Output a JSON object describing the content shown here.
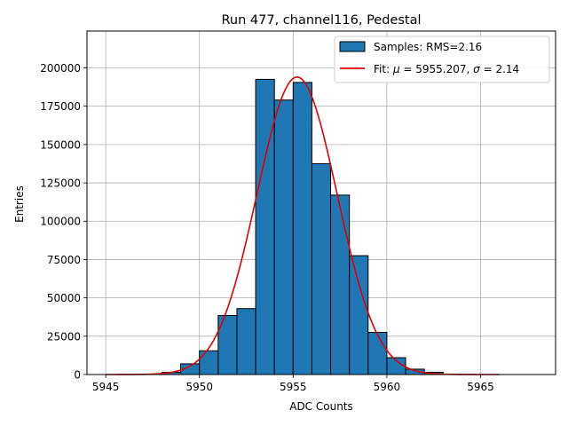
{
  "chart_data": {
    "type": "bar",
    "title": "Run 477, channel116, Pedestal",
    "xlabel": "ADC Counts",
    "ylabel": "Entries",
    "xlim": [
      5944,
      5969
    ],
    "ylim": [
      0,
      224000
    ],
    "xticks": [
      5945,
      5950,
      5955,
      5960,
      5965
    ],
    "yticks": [
      0,
      25000,
      50000,
      75000,
      100000,
      125000,
      150000,
      175000,
      200000
    ],
    "grid": true,
    "legend_position": "top-right",
    "histogram": {
      "name": "Samples: RMS=2.16",
      "color": "#1f77b4",
      "bin_width": 1,
      "bins": [
        {
          "x0": 5948,
          "value": 1500
        },
        {
          "x0": 5949,
          "value": 7000
        },
        {
          "x0": 5950,
          "value": 15500
        },
        {
          "x0": 5951,
          "value": 38500
        },
        {
          "x0": 5952,
          "value": 43000
        },
        {
          "x0": 5953,
          "value": 192500
        },
        {
          "x0": 5954,
          "value": 179000
        },
        {
          "x0": 5955,
          "value": 190500
        },
        {
          "x0": 5956,
          "value": 137500
        },
        {
          "x0": 5957,
          "value": 117000
        },
        {
          "x0": 5958,
          "value": 77500
        },
        {
          "x0": 5959,
          "value": 27500
        },
        {
          "x0": 5960,
          "value": 11000
        },
        {
          "x0": 5961,
          "value": 3500
        },
        {
          "x0": 5962,
          "value": 1500
        }
      ]
    },
    "fit": {
      "name_prefix": "Fit: ",
      "mu_symbol": "μ",
      "mu_text": " = 5955.207, ",
      "sigma_symbol": "σ",
      "sigma_text": " = 2.14",
      "color": "#e00000",
      "mu": 5955.207,
      "sigma": 2.14,
      "amplitude": 194000,
      "x_range": [
        5945,
        5966
      ]
    }
  }
}
